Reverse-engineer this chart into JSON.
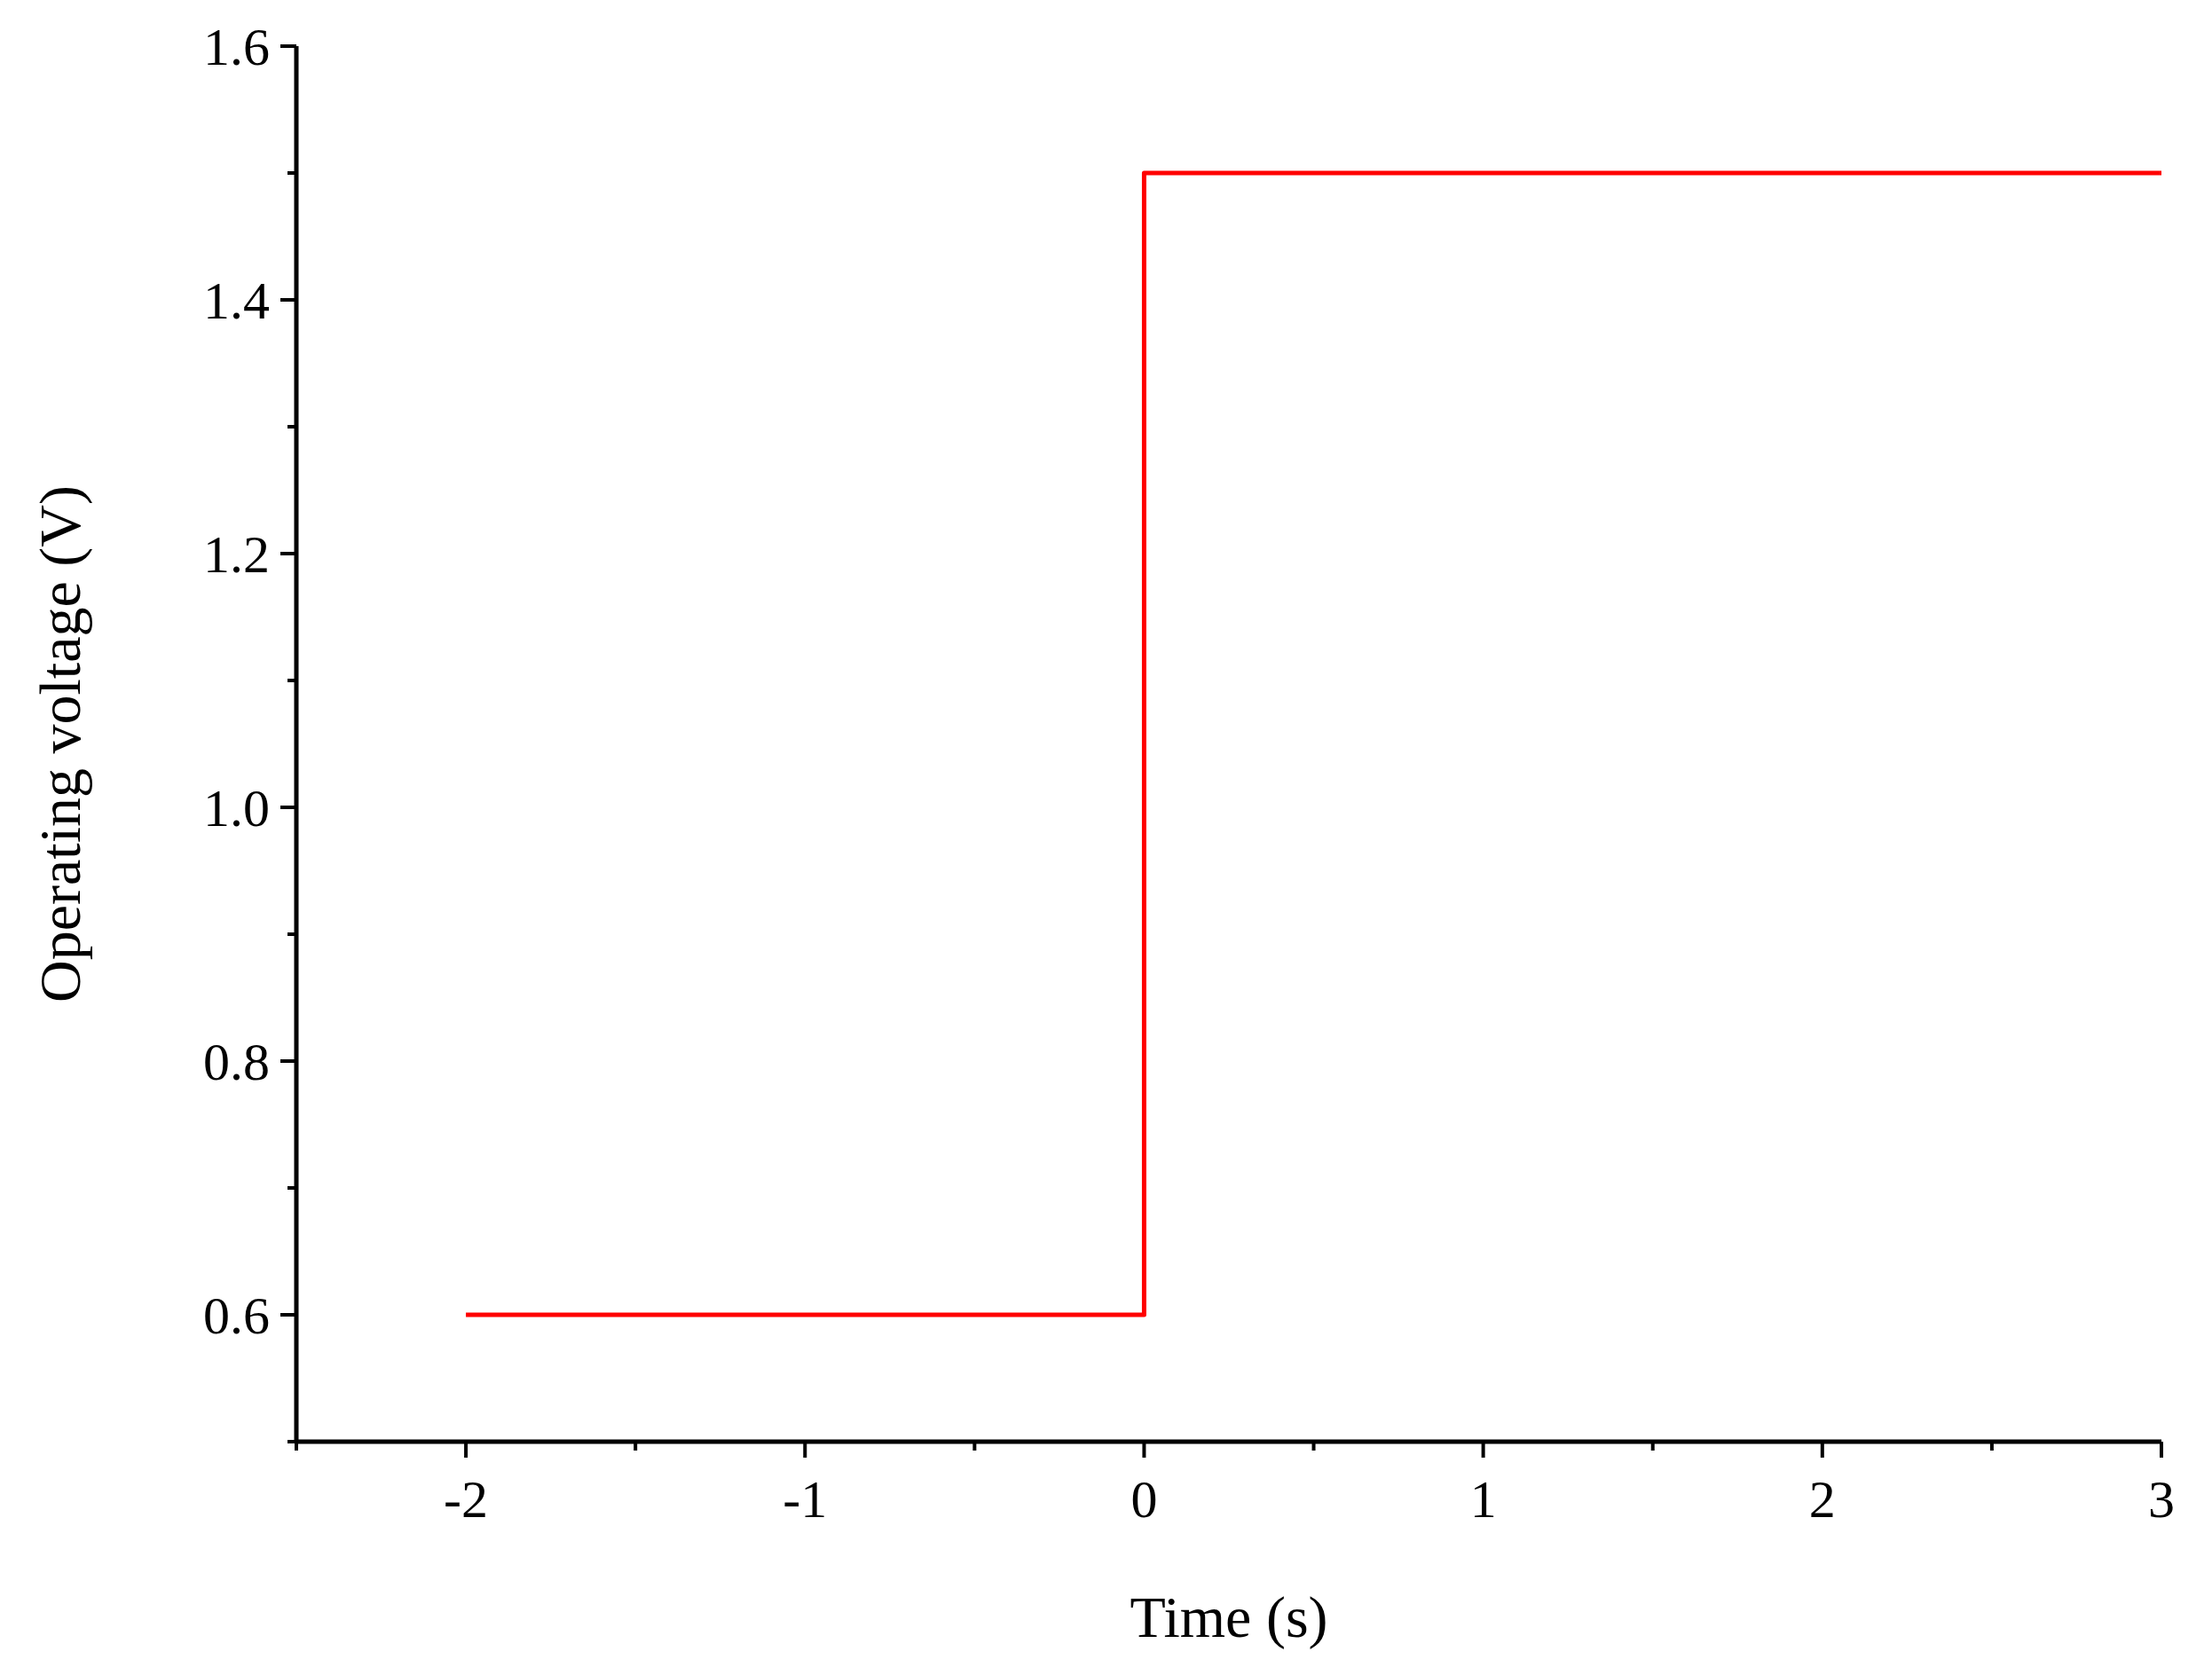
{
  "chart_data": {
    "type": "line",
    "xlabel": "Time (s)",
    "ylabel": "Operating voltage (V)",
    "x": [
      -2,
      0,
      0,
      3
    ],
    "series": [
      {
        "color": "#ff0000",
        "values": [
          0.6,
          0.6,
          1.5,
          1.5
        ]
      }
    ],
    "xlim": [
      -2.5,
      3
    ],
    "ylim": [
      0.5,
      1.6
    ],
    "xticks": [
      {
        "value": -2.5,
        "label": null
      },
      -2,
      {
        "value": -1.5,
        "label": null
      },
      -1,
      {
        "value": -0.5,
        "label": null
      },
      0,
      {
        "value": 0.5,
        "label": null
      },
      1,
      {
        "value": 1.5,
        "label": null
      },
      2,
      {
        "value": 2.5,
        "label": null
      },
      3
    ],
    "yticks": [
      {
        "value": 0.5,
        "label": null
      },
      {
        "value": 0.6,
        "label": "0.6"
      },
      {
        "value": 0.7,
        "label": null
      },
      {
        "value": 0.8,
        "label": "0.8"
      },
      {
        "value": 0.9,
        "label": null
      },
      {
        "value": 1.0,
        "label": "1.0"
      },
      {
        "value": 1.1,
        "label": null
      },
      {
        "value": 1.2,
        "label": "1.2"
      },
      {
        "value": 1.3,
        "label": null
      },
      {
        "value": 1.4,
        "label": "1.4"
      },
      {
        "value": 1.5,
        "label": null
      },
      {
        "value": 1.6,
        "label": "1.6"
      }
    ],
    "grid": false,
    "marker": "none",
    "line_style": "solid"
  }
}
